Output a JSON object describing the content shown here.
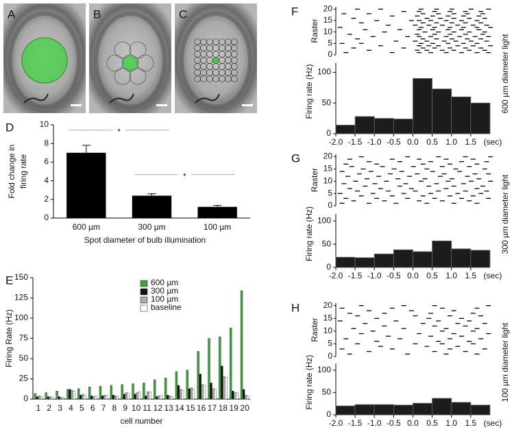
{
  "images": [
    {
      "label": "A"
    },
    {
      "label": "B"
    },
    {
      "label": "C"
    }
  ],
  "chart_data": [
    {
      "type": "bar",
      "panel": "D",
      "categories": [
        "600 µm",
        "300 µm",
        "100 µm"
      ],
      "values": [
        7.0,
        2.4,
        1.2
      ],
      "errors": [
        0.8,
        0.2,
        0.15
      ],
      "color": "#000000",
      "ylim": [
        0,
        10
      ],
      "yticks": [
        0,
        2,
        4,
        6,
        8,
        10
      ],
      "ylabel": [
        "Fold change in",
        "firing rate"
      ],
      "xlabel": "Spot diameter of bulb illumination",
      "annotations": [
        "*",
        "*"
      ]
    },
    {
      "type": "grouped",
      "panel": "E",
      "categories": [
        1,
        2,
        3,
        4,
        5,
        6,
        7,
        8,
        9,
        10,
        11,
        12,
        13,
        14,
        15,
        16,
        17,
        18,
        19,
        20
      ],
      "series": [
        {
          "name": "600  µm",
          "color": "#3aa33a",
          "values": [
            7,
            8,
            10,
            12,
            13,
            15,
            16,
            17,
            18,
            19,
            20,
            24,
            26,
            34,
            36,
            59,
            75,
            77,
            88,
            134
          ]
        },
        {
          "name": "300  µm",
          "color": "#111111",
          "values": [
            3,
            3,
            3,
            12,
            5,
            4,
            4,
            5,
            6,
            6,
            4,
            3,
            5,
            17,
            13,
            31,
            20,
            41,
            10,
            12
          ]
        },
        {
          "name": "100  µm",
          "color": "#aaaaaa",
          "values": [
            4,
            3,
            2,
            11,
            6,
            3,
            5,
            4,
            8,
            8,
            9,
            4,
            4,
            12,
            14,
            18,
            13,
            28,
            8,
            5
          ]
        },
        {
          "name": "baseline",
          "color": "#ffffff",
          "values": [
            3,
            2,
            2,
            10,
            5,
            4,
            5,
            4,
            7,
            9,
            9,
            5,
            3,
            11,
            12,
            17,
            12,
            27,
            8,
            4
          ]
        }
      ],
      "ylim": [
        0,
        150
      ],
      "yticks": [
        0,
        25,
        50,
        75,
        100,
        125,
        150
      ],
      "ylabel": "Firing Rate (Hz)",
      "xlabel": "cell number"
    },
    {
      "type": "raster",
      "panel": "F",
      "side_label": "600 µm diameter light",
      "raster_label": "Raster",
      "ylabel": "Firing rate (Hz)",
      "xunit": "(sec)",
      "raster_ylim": [
        0,
        21
      ],
      "raster_yticks": [
        0,
        5,
        10,
        15,
        20
      ],
      "raster": [
        [
          -1.8,
          -0.6,
          0.1,
          0.4,
          0.8,
          1.2,
          1.6,
          1.9
        ],
        [
          -1.2,
          0.05,
          0.3,
          0.7,
          1.0,
          1.4,
          1.8
        ],
        [
          -1.6,
          -0.3,
          0.2,
          0.5,
          0.9,
          1.3,
          1.7
        ],
        [
          -0.9,
          0.1,
          0.35,
          0.6,
          1.1,
          1.5,
          1.95
        ],
        [
          -1.9,
          -1.4,
          0.15,
          0.45,
          0.85,
          1.25,
          1.6
        ],
        [
          -0.5,
          0.0,
          0.3,
          0.75,
          1.05,
          1.45,
          1.85
        ],
        [
          -1.5,
          0.2,
          0.55,
          0.95,
          1.35,
          1.7
        ],
        [
          -1.1,
          -0.2,
          0.1,
          0.4,
          0.8,
          1.15,
          1.55,
          1.9
        ],
        [
          -1.7,
          0.05,
          0.5,
          0.9,
          1.3,
          1.75
        ],
        [
          -0.8,
          0.25,
          0.6,
          1.0,
          1.4,
          1.8
        ],
        [
          -1.3,
          -0.4,
          0.1,
          0.45,
          0.85,
          1.2,
          1.65
        ],
        [
          -1.95,
          0.15,
          0.5,
          0.9,
          1.25,
          1.6,
          1.95
        ],
        [
          -0.7,
          0.0,
          0.35,
          0.7,
          1.1,
          1.5,
          1.85
        ],
        [
          -1.4,
          0.2,
          0.55,
          0.95,
          1.3,
          1.7
        ],
        [
          -1.0,
          -0.1,
          0.1,
          0.4,
          0.8,
          1.2,
          1.6
        ],
        [
          -1.6,
          0.3,
          0.65,
          1.0,
          1.4,
          1.8
        ],
        [
          -0.6,
          0.05,
          0.45,
          0.85,
          1.25,
          1.65
        ],
        [
          -1.85,
          -1.2,
          0.2,
          0.6,
          1.0,
          1.35,
          1.75
        ],
        [
          -0.3,
          0.1,
          0.5,
          0.9,
          1.3,
          1.7
        ],
        [
          -1.5,
          -0.9,
          0.15,
          0.55,
          0.95,
          1.45,
          1.9
        ]
      ],
      "bins": [
        -2.0,
        -1.5,
        -1.0,
        -0.5,
        0.0,
        0.5,
        1.0,
        1.5,
        2.0
      ],
      "counts": [
        14,
        28,
        25,
        24,
        90,
        73,
        60,
        50
      ],
      "xlim": [
        -2,
        2
      ],
      "xticks": [
        {
          "value": -2,
          "label": "-2.0"
        },
        -1.5,
        {
          "value": -1,
          "label": "-1.0"
        },
        -0.5,
        {
          "value": 0,
          "label": "0.0"
        },
        0.5,
        {
          "value": 1,
          "label": "1.0"
        },
        1.5
      ],
      "ylim": [
        0,
        115
      ],
      "yticks": [
        0,
        50,
        100
      ]
    },
    {
      "type": "raster",
      "panel": "G",
      "side_label": "300 µm diameter light",
      "raster_label": "Raster",
      "ylabel": "Firing rate (Hz)",
      "xunit": "(sec)",
      "raster_ylim": [
        0,
        21
      ],
      "raster_yticks": [
        0,
        5,
        10,
        15,
        20
      ],
      "raster": [
        [
          -1.9,
          -1.2,
          -0.5,
          0.3,
          1.0,
          1.6
        ],
        [
          -1.6,
          -0.8,
          0.1,
          0.7,
          1.4
        ],
        [
          -1.8,
          -1.0,
          -0.2,
          0.5,
          1.2,
          1.9
        ],
        [
          -1.4,
          -0.6,
          0.2,
          0.9,
          1.5
        ],
        [
          -1.95,
          -1.1,
          -0.3,
          0.4,
          1.1,
          1.7
        ],
        [
          -1.5,
          -0.7,
          0.0,
          0.6,
          1.3,
          1.85
        ],
        [
          -1.7,
          -0.9,
          -0.1,
          0.8,
          1.6
        ],
        [
          -1.3,
          -0.4,
          0.35,
          1.0,
          1.75
        ],
        [
          -1.85,
          -1.05,
          -0.25,
          0.55,
          1.25
        ],
        [
          -1.55,
          -0.75,
          0.15,
          0.85,
          1.45,
          1.95
        ],
        [
          -1.25,
          -0.45,
          0.25,
          0.95,
          1.65
        ],
        [
          -1.75,
          -0.95,
          -0.15,
          0.65,
          1.35
        ],
        [
          -1.45,
          -0.65,
          0.05,
          0.75,
          1.55,
          1.9
        ],
        [
          -1.9,
          -1.15,
          -0.35,
          0.45,
          1.15
        ],
        [
          -1.35,
          -0.55,
          0.3,
          1.05,
          1.8
        ],
        [
          -1.65,
          -0.85,
          -0.05,
          0.7,
          1.4
        ],
        [
          -1.8,
          -1.0,
          0.2,
          0.9,
          1.6
        ],
        [
          -1.2,
          -0.4,
          0.4,
          1.2,
          1.85
        ],
        [
          -1.7,
          -0.6,
          0.1,
          0.8,
          1.5
        ],
        [
          -1.4,
          -0.2,
          0.6,
          1.3,
          1.95
        ]
      ],
      "bins": [
        -2.0,
        -1.5,
        -1.0,
        -0.5,
        0.0,
        0.5,
        1.0,
        1.5,
        2.0
      ],
      "counts": [
        22,
        21,
        29,
        38,
        34,
        57,
        40,
        37
      ],
      "xlim": [
        -2,
        2
      ],
      "xticks": [
        {
          "value": -2,
          "label": "-2.0"
        },
        -1.5,
        {
          "value": -1,
          "label": "-1.0"
        },
        -0.5,
        {
          "value": 0,
          "label": "0.0"
        },
        0.5,
        {
          "value": 1,
          "label": "1.0"
        },
        1.5
      ],
      "ylim": [
        0,
        115
      ],
      "yticks": [
        0,
        50,
        100
      ]
    },
    {
      "type": "raster",
      "panel": "H",
      "side_label": "100 µm diameter light",
      "raster_label": "Raster",
      "ylabel": "Firing rate (Hz)",
      "xunit": "(sec)",
      "raster_ylim": [
        0,
        21
      ],
      "raster_yticks": [
        0,
        5,
        10,
        15,
        20
      ],
      "raster": [
        [
          -1.7,
          -0.2,
          0.8,
          1.6
        ],
        [
          -1.2,
          0.5,
          1.3
        ],
        [
          -1.9,
          -0.6,
          0.9,
          1.8
        ],
        [
          -0.9,
          0.3,
          1.1
        ],
        [
          -1.5,
          0.0,
          0.7,
          1.5
        ],
        [
          -1.0,
          0.6,
          1.4
        ],
        [
          -1.8,
          -0.4,
          0.9,
          1.7
        ],
        [
          -0.7,
          0.4,
          1.2
        ],
        [
          -1.4,
          0.1,
          1.0,
          1.9
        ],
        [
          -1.1,
          0.7,
          1.5
        ],
        [
          -1.6,
          -0.3,
          0.8,
          1.6
        ],
        [
          -0.8,
          0.5,
          1.3
        ],
        [
          -1.3,
          0.2,
          1.1,
          1.8
        ],
        [
          -1.95,
          -0.5,
          0.6,
          1.4
        ],
        [
          -1.0,
          0.35,
          1.2
        ],
        [
          -1.5,
          0.0,
          0.9,
          1.7
        ],
        [
          -1.7,
          -0.8,
          0.4,
          1.5
        ],
        [
          -1.2,
          -0.1,
          1.0
        ],
        [
          -1.9,
          -0.6,
          0.7,
          1.6
        ],
        [
          -1.4,
          -0.3,
          0.5,
          1.9
        ]
      ],
      "bins": [
        -2.0,
        -1.5,
        -1.0,
        -0.5,
        0.0,
        0.5,
        1.0,
        1.5,
        2.0
      ],
      "counts": [
        20,
        23,
        23,
        22,
        26,
        37,
        28,
        22
      ],
      "xlim": [
        -2,
        2
      ],
      "xticks": [
        {
          "value": -2,
          "label": "-2.0"
        },
        -1.5,
        {
          "value": -1,
          "label": "-1.0"
        },
        -0.5,
        {
          "value": 0,
          "label": "0.0"
        },
        0.5,
        {
          "value": 1,
          "label": "1.0"
        },
        1.5
      ],
      "ylim": [
        0,
        115
      ],
      "yticks": [
        0,
        50,
        100
      ]
    }
  ]
}
